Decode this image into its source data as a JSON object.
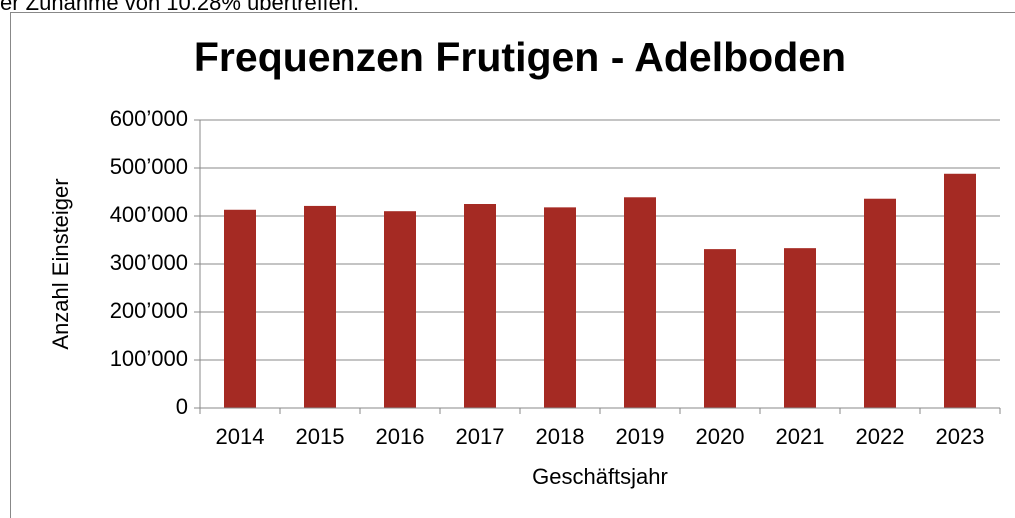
{
  "intro_fragment": "er Zunahme von 10.28% übertreffen.",
  "chart_data": {
    "type": "bar",
    "title": "Frequenzen Frutigen - Adelboden",
    "x_label": "Geschäftsjahr",
    "y_label": "Anzahl Einsteiger",
    "categories": [
      "2014",
      "2015",
      "2016",
      "2017",
      "2018",
      "2019",
      "2020",
      "2021",
      "2022",
      "2023"
    ],
    "values": [
      413000,
      421000,
      410000,
      425000,
      418000,
      439000,
      331000,
      333000,
      436000,
      488000
    ],
    "color": "#a52a23",
    "ylim": [
      0,
      600000
    ],
    "yticks": [
      0,
      {
        "value": 100000,
        "label": "100’000"
      },
      {
        "value": 200000,
        "label": "200’000"
      },
      {
        "value": 300000,
        "label": "300’000"
      },
      {
        "value": 400000,
        "label": "400’000"
      },
      {
        "value": 500000,
        "label": "500’000"
      },
      {
        "value": 600000,
        "label": "600’000"
      }
    ],
    "grid": true
  }
}
